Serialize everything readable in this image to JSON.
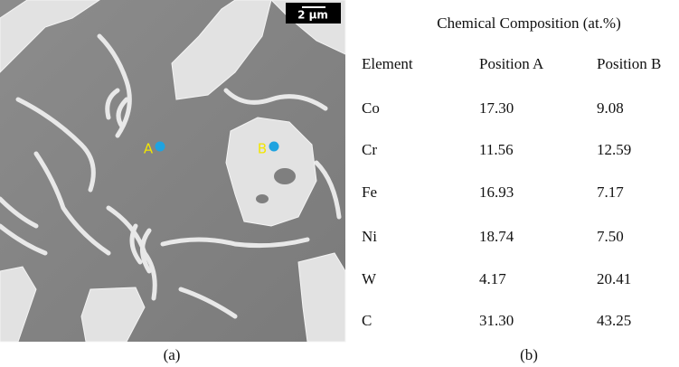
{
  "image": {
    "scale_bar": "2 µm",
    "points": [
      "A",
      "B"
    ],
    "caption": "(a)"
  },
  "table": {
    "title": "Chemical Composition (at.%)",
    "header": [
      "Element",
      "Position A",
      "Position B"
    ],
    "rows": [
      [
        "Co",
        "17.30",
        "9.08"
      ],
      [
        "Cr",
        "11.56",
        "12.59"
      ],
      [
        "Fe",
        "16.93",
        "7.17"
      ],
      [
        "Ni",
        "18.74",
        "7.50"
      ],
      [
        "W",
        "4.17",
        "20.41"
      ],
      [
        "C",
        "31.30",
        "43.25"
      ]
    ],
    "caption": "(b)"
  }
}
